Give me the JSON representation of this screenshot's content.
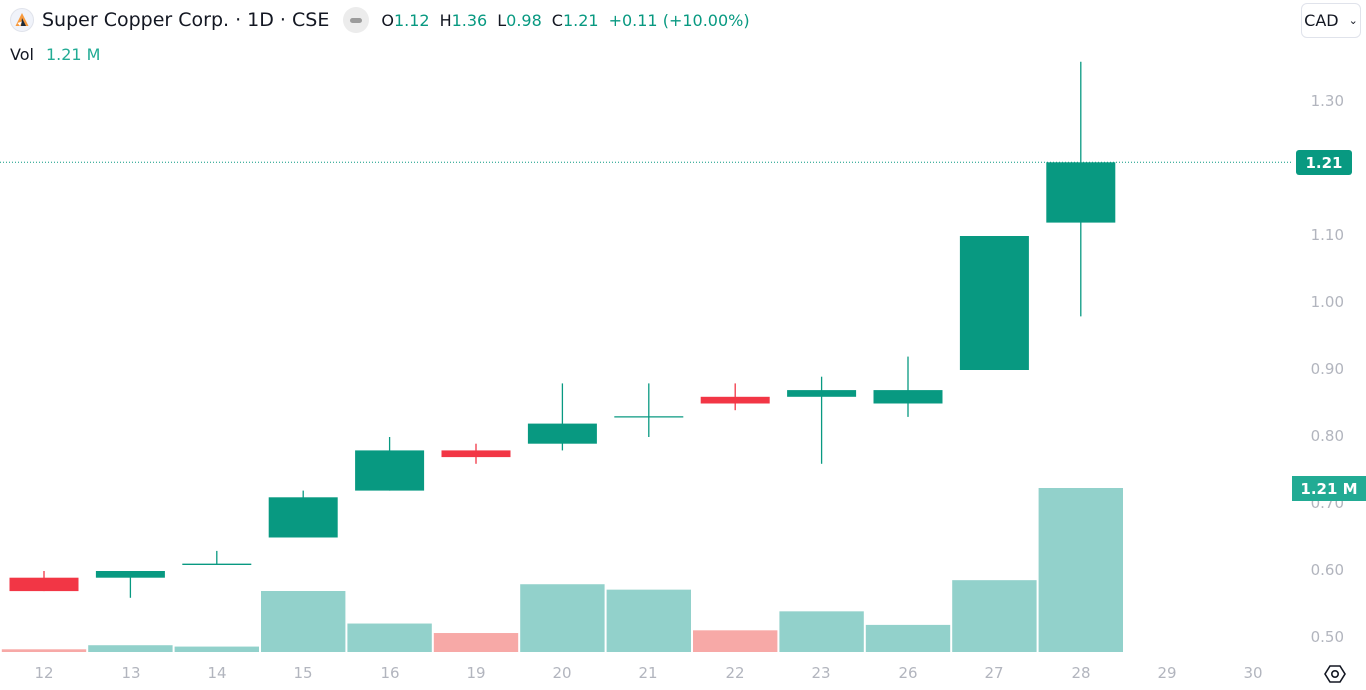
{
  "header": {
    "title": "Super Copper Corp. · 1D · CSE",
    "logo_icon": "company-logo-icon",
    "ohlc": {
      "o_label": "O",
      "o_value": "1.12",
      "h_label": "H",
      "h_value": "1.36",
      "l_label": "L",
      "l_value": "0.98",
      "c_label": "C",
      "c_value": "1.21",
      "change": "+0.11 (+10.00%)"
    },
    "volume_label": "Vol",
    "volume_value": "1.21 M"
  },
  "currency": {
    "label": "CAD",
    "icon": "chevron-down-icon"
  },
  "price_axis": {
    "ticks": [
      "1.30",
      "1.10",
      "1.00",
      "0.90",
      "0.80",
      "0.70",
      "0.60",
      "0.50"
    ],
    "last_price_tag": "1.21",
    "volume_tag": "1.21 M"
  },
  "time_axis": {
    "ticks": [
      "12",
      "13",
      "14",
      "15",
      "16",
      "19",
      "20",
      "21",
      "22",
      "23",
      "26",
      "27",
      "28",
      "29",
      "30"
    ]
  },
  "colors": {
    "up": "#089981",
    "down": "#f23645",
    "up_volume": "#92d1cb",
    "down_volume": "#f7a9a7",
    "axis_text": "#b2b5be"
  },
  "chart_data": {
    "type": "candlestick",
    "title": "Super Copper Corp. · 1D · CSE",
    "currency": "CAD",
    "categories": [
      "12",
      "13",
      "14",
      "15",
      "16",
      "19",
      "20",
      "21",
      "22",
      "23",
      "26",
      "27",
      "28"
    ],
    "series": [
      {
        "name": "Open",
        "values": [
          0.59,
          0.59,
          0.61,
          0.65,
          0.72,
          0.78,
          0.79,
          0.83,
          0.86,
          0.86,
          0.85,
          0.9,
          1.12
        ]
      },
      {
        "name": "High",
        "values": [
          0.6,
          0.6,
          0.63,
          0.72,
          0.8,
          0.79,
          0.88,
          0.88,
          0.88,
          0.89,
          0.92,
          1.1,
          1.36
        ]
      },
      {
        "name": "Low",
        "values": [
          0.57,
          0.56,
          0.61,
          0.65,
          0.72,
          0.76,
          0.78,
          0.8,
          0.84,
          0.76,
          0.83,
          0.9,
          0.98
        ]
      },
      {
        "name": "Close",
        "values": [
          0.57,
          0.6,
          0.61,
          0.71,
          0.78,
          0.77,
          0.82,
          0.83,
          0.85,
          0.87,
          0.87,
          1.1,
          1.21
        ]
      },
      {
        "name": "Volume (M)",
        "values": [
          0.02,
          0.05,
          0.04,
          0.45,
          0.21,
          0.14,
          0.5,
          0.46,
          0.16,
          0.3,
          0.2,
          0.53,
          1.21
        ]
      }
    ],
    "ylim": [
      0.48,
      1.38
    ],
    "yticks": [
      0.5,
      0.6,
      0.7,
      0.8,
      0.9,
      1.0,
      1.1,
      1.3
    ],
    "xlabel": "",
    "ylabel": "",
    "last_price": 1.21,
    "grid": false
  }
}
